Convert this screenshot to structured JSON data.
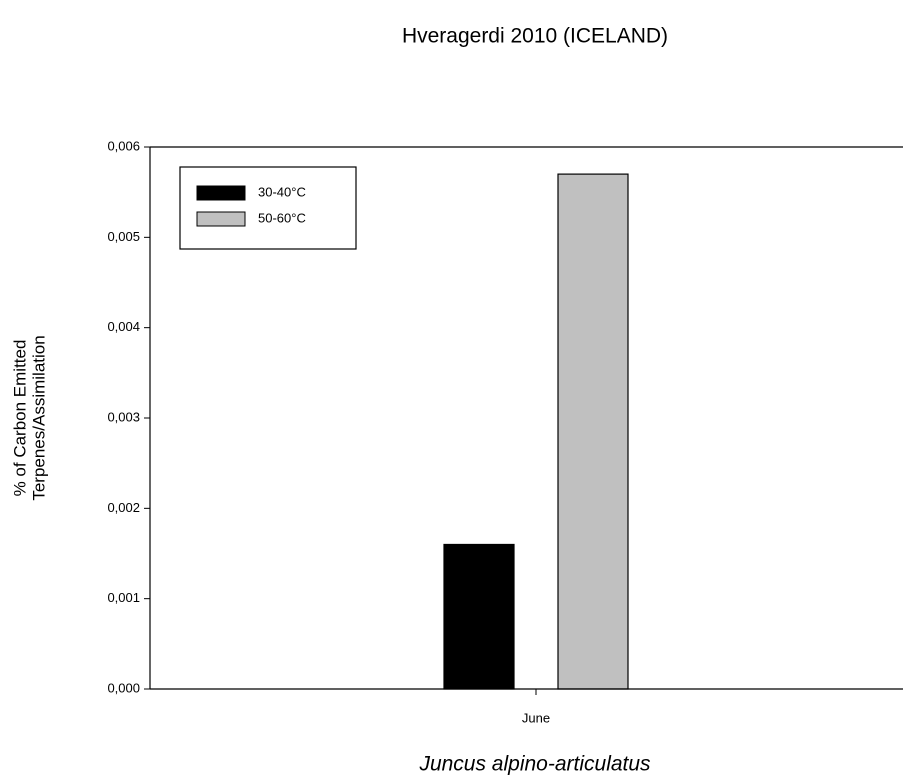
{
  "chart_data": {
    "type": "bar",
    "title": "Hveragerdi 2010 (ICELAND)",
    "xlabel": "Juncus alpino-articulatus",
    "ylabel": [
      "% of Carbon Emitted",
      "Terpenes/Assimilation"
    ],
    "categories": [
      "June"
    ],
    "series": [
      {
        "name": "30-40°C",
        "color": "#000000",
        "values": [
          0.0016
        ]
      },
      {
        "name": "50-60°C",
        "color": "#c0c0c0",
        "values": [
          0.0057
        ]
      }
    ],
    "ylim": [
      0,
      0.006
    ],
    "yticks": [
      {
        "value": 0,
        "label": "0,000"
      },
      {
        "value": 0.001,
        "label": "0,001"
      },
      {
        "value": 0.002,
        "label": "0,002"
      },
      {
        "value": 0.003,
        "label": "0,003"
      },
      {
        "value": 0.004,
        "label": "0,004"
      },
      {
        "value": 0.005,
        "label": "0,005"
      },
      {
        "value": 0.006,
        "label": "0,006"
      }
    ],
    "legend": "upper left"
  }
}
